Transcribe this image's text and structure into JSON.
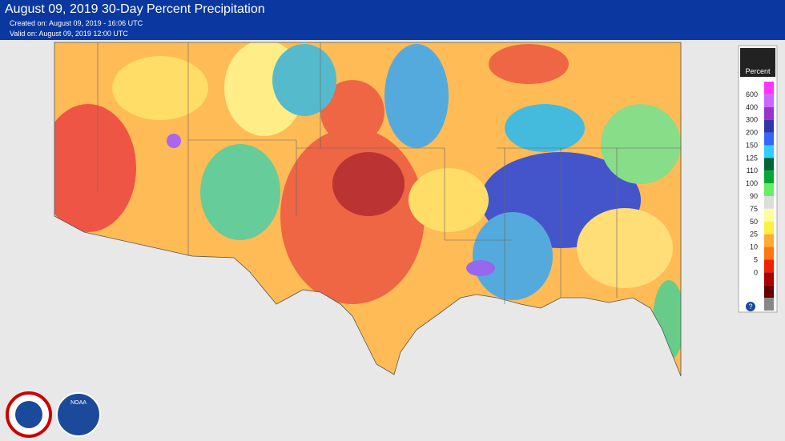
{
  "header": {
    "title": "August 09, 2019 30-Day Percent Precipitation",
    "created": "Created on: August 09, 2019 - 16:06 UTC",
    "valid": "Valid on: August 09, 2019 12:00 UTC"
  },
  "legend": {
    "title": "Percent",
    "labels": [
      "600",
      "400",
      "300",
      "200",
      "150",
      "125",
      "110",
      "100",
      "90",
      "75",
      "50",
      "25",
      "10",
      "5",
      "0"
    ],
    "colors": [
      "#ff33ff",
      "#cc66ff",
      "#9933cc",
      "#3333aa",
      "#3366ff",
      "#33ccff",
      "#006633",
      "#00aa33",
      "#66ee66",
      "#dddddd",
      "#ffff99",
      "#ffee44",
      "#ffaa33",
      "#ff7711",
      "#ee2200",
      "#aa0000",
      "#660000",
      "#888888"
    ],
    "help": "?"
  },
  "logos": {
    "noaa": "NOAA"
  }
}
